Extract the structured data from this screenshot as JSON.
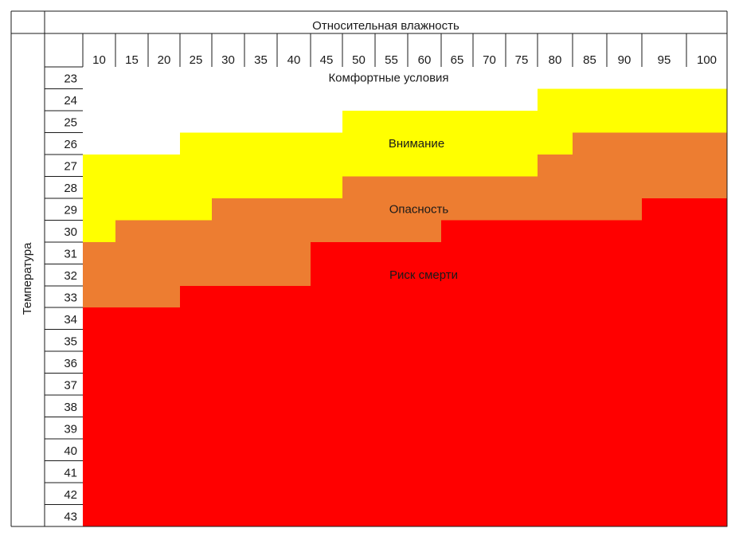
{
  "chart_data": {
    "type": "heatmap",
    "column_header": "Относительная влажность",
    "row_header": "Температура",
    "humidity": [
      "10",
      "15",
      "20",
      "25",
      "30",
      "35",
      "40",
      "45",
      "50",
      "55",
      "60",
      "65",
      "70",
      "75",
      "80",
      "85",
      "90",
      "95",
      "100"
    ],
    "temperature": [
      "23",
      "24",
      "25",
      "26",
      "27",
      "28",
      "29",
      "30",
      "31",
      "32",
      "33",
      "34",
      "35",
      "36",
      "37",
      "38",
      "39",
      "40",
      "41",
      "42",
      "43"
    ],
    "categories": [
      {
        "name": "Комфортные условия",
        "color": "#ffffff"
      },
      {
        "name": "Внимание",
        "color": "#ffff00"
      },
      {
        "name": "Опасность",
        "color": "#ed7d31"
      },
      {
        "name": "Риск смерти",
        "color": "#ff0000"
      }
    ],
    "zones": [
      [
        0,
        0,
        0,
        0,
        0,
        0,
        0,
        0,
        0,
        0,
        0,
        0,
        0,
        0,
        0,
        0,
        0,
        0,
        0
      ],
      [
        0,
        0,
        0,
        0,
        0,
        0,
        0,
        0,
        0,
        0,
        0,
        0,
        0,
        0,
        1,
        1,
        1,
        1,
        1
      ],
      [
        0,
        0,
        0,
        0,
        0,
        0,
        0,
        0,
        1,
        1,
        1,
        1,
        1,
        1,
        1,
        1,
        1,
        1,
        1
      ],
      [
        0,
        0,
        0,
        1,
        1,
        1,
        1,
        1,
        1,
        1,
        1,
        1,
        1,
        1,
        1,
        2,
        2,
        2,
        2
      ],
      [
        1,
        1,
        1,
        1,
        1,
        1,
        1,
        1,
        1,
        1,
        1,
        1,
        1,
        1,
        2,
        2,
        2,
        2,
        2
      ],
      [
        1,
        1,
        1,
        1,
        1,
        1,
        1,
        1,
        2,
        2,
        2,
        2,
        2,
        2,
        2,
        2,
        2,
        2,
        2
      ],
      [
        1,
        1,
        1,
        1,
        2,
        2,
        2,
        2,
        2,
        2,
        2,
        2,
        2,
        2,
        2,
        2,
        2,
        3,
        3
      ],
      [
        1,
        2,
        2,
        2,
        2,
        2,
        2,
        2,
        2,
        2,
        2,
        3,
        3,
        3,
        3,
        3,
        3,
        3,
        3
      ],
      [
        2,
        2,
        2,
        2,
        2,
        2,
        2,
        3,
        3,
        3,
        3,
        3,
        3,
        3,
        3,
        3,
        3,
        3,
        3
      ],
      [
        2,
        2,
        2,
        2,
        2,
        2,
        2,
        3,
        3,
        3,
        3,
        3,
        3,
        3,
        3,
        3,
        3,
        3,
        3
      ],
      [
        2,
        2,
        2,
        3,
        3,
        3,
        3,
        3,
        3,
        3,
        3,
        3,
        3,
        3,
        3,
        3,
        3,
        3,
        3
      ],
      [
        3,
        3,
        3,
        3,
        3,
        3,
        3,
        3,
        3,
        3,
        3,
        3,
        3,
        3,
        3,
        3,
        3,
        3,
        3
      ],
      [
        3,
        3,
        3,
        3,
        3,
        3,
        3,
        3,
        3,
        3,
        3,
        3,
        3,
        3,
        3,
        3,
        3,
        3,
        3
      ],
      [
        3,
        3,
        3,
        3,
        3,
        3,
        3,
        3,
        3,
        3,
        3,
        3,
        3,
        3,
        3,
        3,
        3,
        3,
        3
      ],
      [
        3,
        3,
        3,
        3,
        3,
        3,
        3,
        3,
        3,
        3,
        3,
        3,
        3,
        3,
        3,
        3,
        3,
        3,
        3
      ],
      [
        3,
        3,
        3,
        3,
        3,
        3,
        3,
        3,
        3,
        3,
        3,
        3,
        3,
        3,
        3,
        3,
        3,
        3,
        3
      ],
      [
        3,
        3,
        3,
        3,
        3,
        3,
        3,
        3,
        3,
        3,
        3,
        3,
        3,
        3,
        3,
        3,
        3,
        3,
        3
      ],
      [
        3,
        3,
        3,
        3,
        3,
        3,
        3,
        3,
        3,
        3,
        3,
        3,
        3,
        3,
        3,
        3,
        3,
        3,
        3
      ],
      [
        3,
        3,
        3,
        3,
        3,
        3,
        3,
        3,
        3,
        3,
        3,
        3,
        3,
        3,
        3,
        3,
        3,
        3,
        3
      ],
      [
        3,
        3,
        3,
        3,
        3,
        3,
        3,
        3,
        3,
        3,
        3,
        3,
        3,
        3,
        3,
        3,
        3,
        3,
        3
      ],
      [
        3,
        3,
        3,
        3,
        3,
        3,
        3,
        3,
        3,
        3,
        3,
        3,
        3,
        3,
        3,
        3,
        3,
        3,
        3
      ]
    ],
    "zone_labels": [
      {
        "text": "Комфортные условия",
        "row": "23"
      },
      {
        "text": "Внимание",
        "row": "26"
      },
      {
        "text": "Опасность",
        "row": "29"
      },
      {
        "text": "Риск смерти",
        "row": "32"
      }
    ],
    "grid": true
  }
}
